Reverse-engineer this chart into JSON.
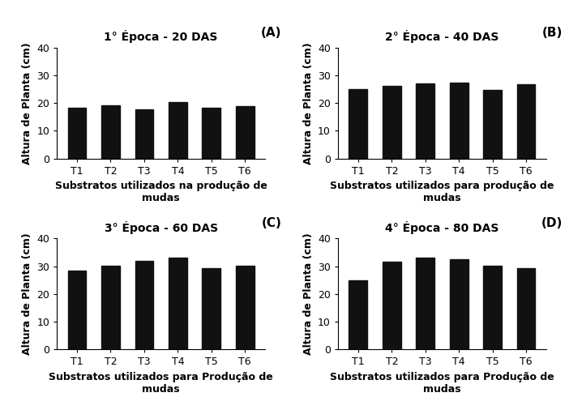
{
  "panels": [
    {
      "title": "1° Época - 20 DAS",
      "label": "(A)",
      "values": [
        18.3,
        19.2,
        17.8,
        20.5,
        18.3,
        19.0
      ],
      "xlabel": "Substratos utilizados na produção de\nmudas",
      "ylabel": "Altura de Planta (cm)",
      "ylim": [
        0,
        40
      ],
      "yticks": [
        0,
        10,
        20,
        30,
        40
      ]
    },
    {
      "title": "2° Época - 40 DAS",
      "label": "(B)",
      "values": [
        25.0,
        26.3,
        27.2,
        27.3,
        24.7,
        26.7
      ],
      "xlabel": "Substratos utilizados para produção de\nmudas",
      "ylabel": "Altura de Planta (cm)",
      "ylim": [
        0,
        40
      ],
      "yticks": [
        0,
        10,
        20,
        30,
        40
      ]
    },
    {
      "title": "3° Época - 60 DAS",
      "label": "(C)",
      "values": [
        28.5,
        30.2,
        31.8,
        33.2,
        29.3,
        30.2
      ],
      "xlabel": "Substratos utilizados para Produção de\nmudas",
      "ylabel": "Altura de Planta (cm)",
      "ylim": [
        0,
        40
      ],
      "yticks": [
        0,
        10,
        20,
        30,
        40
      ]
    },
    {
      "title": "4° Época - 80 DAS",
      "label": "(D)",
      "values": [
        25.0,
        31.5,
        33.2,
        32.5,
        30.2,
        29.2
      ],
      "xlabel": "Substratos utilizados para Produção de\nmudas",
      "ylabel": "Altura de Planta (cm)",
      "ylim": [
        0,
        40
      ],
      "yticks": [
        0,
        10,
        20,
        30,
        40
      ]
    }
  ],
  "categories": [
    "T1",
    "T2",
    "T3",
    "T4",
    "T5",
    "T6"
  ],
  "bar_color": "#111111",
  "bar_width": 0.55,
  "title_fontsize": 10,
  "label_fontsize": 11,
  "tick_fontsize": 9,
  "xlabel_fontsize": 9,
  "ylabel_fontsize": 9,
  "background_color": "#ffffff"
}
